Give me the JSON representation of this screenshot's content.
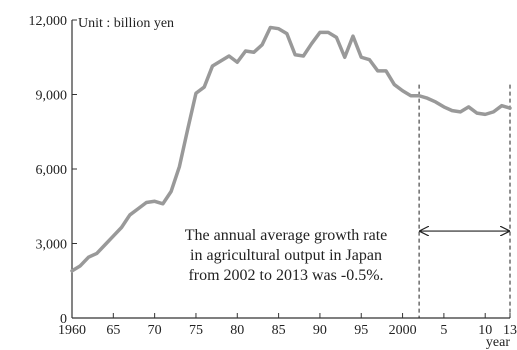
{
  "chart_data": {
    "type": "line",
    "unit_label": "Unit : billion yen",
    "xlabel": "year",
    "ylabel": "",
    "xlim": [
      1960,
      2013
    ],
    "ylim": [
      0,
      12000
    ],
    "y_ticks": [
      {
        "value": 0,
        "label": "0"
      },
      {
        "value": 3000,
        "label": "3,000"
      },
      {
        "value": 6000,
        "label": "6,000"
      },
      {
        "value": 9000,
        "label": "9,000"
      },
      {
        "value": 12000,
        "label": "12,000"
      }
    ],
    "x_ticks": [
      {
        "value": 1960,
        "label": "1960"
      },
      {
        "value": 1965,
        "label": "65"
      },
      {
        "value": 1970,
        "label": "70"
      },
      {
        "value": 1975,
        "label": "75"
      },
      {
        "value": 1980,
        "label": "80"
      },
      {
        "value": 1985,
        "label": "85"
      },
      {
        "value": 1990,
        "label": "90"
      },
      {
        "value": 1995,
        "label": "95"
      },
      {
        "value": 2000,
        "label": "2000"
      },
      {
        "value": 2005,
        "label": "5"
      },
      {
        "value": 2010,
        "label": "10"
      },
      {
        "value": 2013,
        "label": "13"
      }
    ],
    "grid": false,
    "legend": "none",
    "series_color": "#999999",
    "x": [
      1960,
      1961,
      1962,
      1963,
      1964,
      1965,
      1966,
      1967,
      1968,
      1969,
      1970,
      1971,
      1972,
      1973,
      1974,
      1975,
      1976,
      1977,
      1978,
      1979,
      1980,
      1981,
      1982,
      1983,
      1984,
      1985,
      1986,
      1987,
      1988,
      1989,
      1990,
      1991,
      1992,
      1993,
      1994,
      1995,
      1996,
      1997,
      1998,
      1999,
      2000,
      2001,
      2002,
      2003,
      2004,
      2005,
      2006,
      2007,
      2008,
      2009,
      2010,
      2011,
      2012,
      2013
    ],
    "values": [
      1900,
      2100,
      2450,
      2600,
      2950,
      3300,
      3650,
      4150,
      4400,
      4650,
      4700,
      4600,
      5100,
      6100,
      7600,
      9050,
      9300,
      10150,
      10350,
      10550,
      10300,
      10750,
      10700,
      11000,
      11700,
      11650,
      11450,
      10600,
      10550,
      11050,
      11500,
      11500,
      11300,
      10500,
      11350,
      10500,
      10400,
      9950,
      9950,
      9400,
      9150,
      8950,
      8950,
      8850,
      8700,
      8500,
      8350,
      8300,
      8500,
      8250,
      8200,
      8300,
      8550,
      8450
    ],
    "reference_lines": [
      2002,
      2013
    ],
    "annotation": {
      "lines": [
        "The annual average growth rate",
        "in agricultural output in Japan",
        "from 2002 to 2013 was -0.5%."
      ],
      "arrow_from": 2002,
      "arrow_to": 2013,
      "arrow_y": 3500
    }
  }
}
